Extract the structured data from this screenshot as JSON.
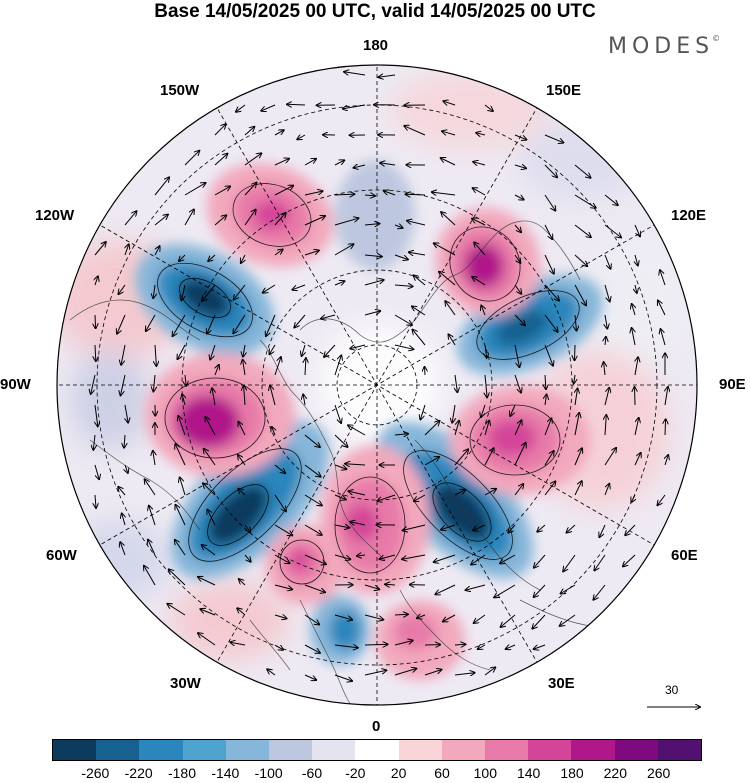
{
  "title": "Base 14/05/2025 00 UTC, valid 14/05/2025 00 UTC",
  "logo": {
    "text": "MODES",
    "mark": "©"
  },
  "longitude_labels": {
    "n180": "180",
    "e150": "150E",
    "e120": "120E",
    "e90": "90E",
    "e60": "60E",
    "e30": "30E",
    "s0": "0",
    "w30": "30W",
    "w60": "60W",
    "w90": "90W",
    "w120": "120W",
    "w150": "150W"
  },
  "reference_vector": {
    "label": "30"
  },
  "colorbar": {
    "colors": [
      "#0d3b5e",
      "#16618f",
      "#2a86bc",
      "#4ea3cf",
      "#86b6d9",
      "#bdc8e0",
      "#e3e4ef",
      "#ffffff",
      "#fad5d8",
      "#f2a9bd",
      "#e77aa8",
      "#d44599",
      "#b0178a",
      "#7f0a80",
      "#521070"
    ],
    "labels": [
      "-260",
      "-220",
      "-180",
      "-140",
      "-100",
      "-60",
      "-20",
      "20",
      "60",
      "100",
      "140",
      "180",
      "220",
      "260"
    ]
  },
  "map": {
    "projection": "north-polar-stereographic",
    "anomaly_centers": [
      {
        "type": "negative",
        "lon_label": "60W-30W",
        "strength": "-260"
      },
      {
        "type": "negative",
        "lon_label": "30E-60E",
        "strength": "-260"
      },
      {
        "type": "negative",
        "lon_label": "120W",
        "strength": "-220"
      },
      {
        "type": "negative",
        "lon_label": "120E",
        "strength": "-220"
      },
      {
        "type": "positive",
        "lon_label": "90W",
        "strength": "220"
      },
      {
        "type": "positive",
        "lon_label": "90E",
        "strength": "180"
      },
      {
        "type": "positive",
        "lon_label": "150W",
        "strength": "180"
      },
      {
        "type": "positive",
        "lon_label": "150E",
        "strength": "220"
      },
      {
        "type": "positive",
        "lon_label": "0",
        "strength": "180"
      }
    ]
  }
}
